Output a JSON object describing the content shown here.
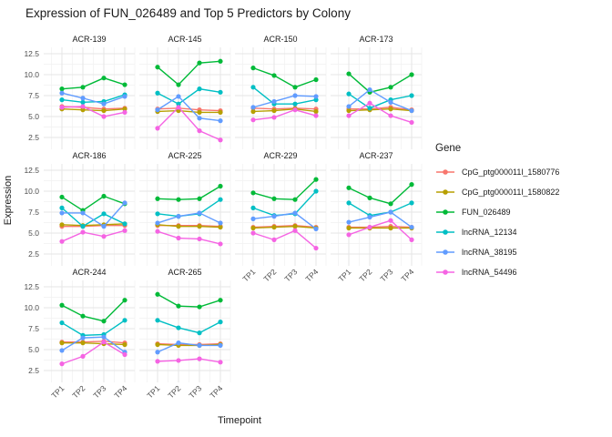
{
  "title": "Expression of FUN_026489 and Top 5 Predictors by Colony",
  "axes": {
    "x_label": "Timepoint",
    "y_label": "Expression",
    "x_ticks": [
      "TP1",
      "TP2",
      "TP3",
      "TP4"
    ],
    "y_ticks": [
      "2.5",
      "5.0",
      "7.5",
      "10.0",
      "12.5"
    ],
    "y_tick_values": [
      2.5,
      5.0,
      7.5,
      10.0,
      12.5
    ],
    "ylim": [
      1.8,
      13.2
    ],
    "grid": "on"
  },
  "legend": {
    "title": "Gene",
    "position": "right",
    "entries": [
      {
        "label": "CpG_ptg000011l_1580776",
        "color": "#F8766D"
      },
      {
        "label": "CpG_ptg000011l_1580822",
        "color": "#B79F00"
      },
      {
        "label": "FUN_026489",
        "color": "#00BA38"
      },
      {
        "label": "lncRNA_12134",
        "color": "#00BFC4"
      },
      {
        "label": "lncRNA_38195",
        "color": "#619CFF"
      },
      {
        "label": "lncRNA_54496",
        "color": "#F564E3"
      }
    ]
  },
  "chart_data": {
    "type": "line",
    "x": [
      "TP1",
      "TP2",
      "TP3",
      "TP4"
    ],
    "series_names": [
      "CpG_ptg000011l_1580776",
      "CpG_ptg000011l_1580822",
      "FUN_026489",
      "lncRNA_12134",
      "lncRNA_38195",
      "lncRNA_54496"
    ],
    "series_colors": [
      "#F8766D",
      "#B79F00",
      "#00BA38",
      "#00BFC4",
      "#619CFF",
      "#F564E3"
    ],
    "facets": [
      {
        "colony": "ACR-139",
        "series": [
          {
            "name": "CpG_ptg000011l_1580776",
            "values": [
              6.2,
              6.1,
              5.9,
              6.0
            ]
          },
          {
            "name": "CpG_ptg000011l_1580822",
            "values": [
              5.9,
              5.8,
              5.7,
              5.9
            ]
          },
          {
            "name": "FUN_026489",
            "values": [
              8.3,
              8.5,
              9.6,
              8.8
            ]
          },
          {
            "name": "lncRNA_12134",
            "values": [
              7.0,
              6.7,
              6.8,
              7.6
            ]
          },
          {
            "name": "lncRNA_38195",
            "values": [
              7.8,
              7.2,
              6.5,
              7.4
            ]
          },
          {
            "name": "lncRNA_54496",
            "values": [
              6.1,
              6.2,
              5.0,
              5.5
            ]
          }
        ]
      },
      {
        "colony": "ACR-145",
        "series": [
          {
            "name": "CpG_ptg000011l_1580776",
            "values": [
              5.9,
              6.0,
              5.8,
              5.7
            ]
          },
          {
            "name": "CpG_ptg000011l_1580822",
            "values": [
              5.6,
              5.7,
              5.5,
              5.5
            ]
          },
          {
            "name": "FUN_026489",
            "values": [
              10.9,
              8.8,
              11.4,
              11.6
            ]
          },
          {
            "name": "lncRNA_12134",
            "values": [
              7.8,
              6.5,
              8.3,
              7.9
            ]
          },
          {
            "name": "lncRNA_38195",
            "values": [
              5.8,
              7.4,
              4.8,
              4.5
            ]
          },
          {
            "name": "lncRNA_54496",
            "values": [
              3.6,
              6.1,
              3.3,
              2.2
            ]
          }
        ]
      },
      {
        "colony": "ACR-150",
        "series": [
          {
            "name": "CpG_ptg000011l_1580776",
            "values": [
              6.0,
              5.9,
              6.0,
              5.9
            ]
          },
          {
            "name": "CpG_ptg000011l_1580822",
            "values": [
              5.6,
              5.7,
              5.9,
              5.6
            ]
          },
          {
            "name": "FUN_026489",
            "values": [
              10.8,
              9.9,
              8.5,
              9.4
            ]
          },
          {
            "name": "lncRNA_12134",
            "values": [
              8.5,
              6.5,
              6.5,
              7.0
            ]
          },
          {
            "name": "lncRNA_38195",
            "values": [
              6.1,
              6.8,
              7.5,
              7.4
            ]
          },
          {
            "name": "lncRNA_54496",
            "values": [
              4.6,
              4.9,
              5.8,
              5.1
            ]
          }
        ]
      },
      {
        "colony": "ACR-173",
        "series": [
          {
            "name": "CpG_ptg000011l_1580776",
            "values": [
              5.9,
              5.9,
              6.1,
              5.8
            ]
          },
          {
            "name": "CpG_ptg000011l_1580822",
            "values": [
              5.7,
              5.8,
              5.9,
              5.7
            ]
          },
          {
            "name": "FUN_026489",
            "values": [
              10.1,
              7.9,
              8.5,
              10.0
            ]
          },
          {
            "name": "lncRNA_12134",
            "values": [
              7.7,
              6.0,
              7.0,
              7.5
            ]
          },
          {
            "name": "lncRNA_38195",
            "values": [
              6.2,
              8.2,
              6.7,
              5.7
            ]
          },
          {
            "name": "lncRNA_54496",
            "values": [
              5.1,
              6.6,
              5.1,
              4.3
            ]
          }
        ]
      },
      {
        "colony": "ACR-186",
        "series": [
          {
            "name": "CpG_ptg000011l_1580776",
            "values": [
              5.8,
              5.8,
              5.9,
              5.9
            ]
          },
          {
            "name": "CpG_ptg000011l_1580822",
            "values": [
              6.0,
              5.9,
              6.0,
              6.1
            ]
          },
          {
            "name": "FUN_026489",
            "values": [
              9.3,
              7.7,
              9.4,
              8.5
            ]
          },
          {
            "name": "lncRNA_12134",
            "values": [
              8.0,
              5.8,
              7.3,
              6.1
            ]
          },
          {
            "name": "lncRNA_38195",
            "values": [
              7.4,
              7.4,
              5.8,
              8.6
            ]
          },
          {
            "name": "lncRNA_54496",
            "values": [
              4.0,
              5.1,
              4.6,
              5.3
            ]
          }
        ]
      },
      {
        "colony": "ACR-225",
        "series": [
          {
            "name": "CpG_ptg000011l_1580776",
            "values": [
              5.9,
              5.9,
              5.9,
              5.8
            ]
          },
          {
            "name": "CpG_ptg000011l_1580822",
            "values": [
              6.0,
              5.8,
              5.8,
              5.7
            ]
          },
          {
            "name": "FUN_026489",
            "values": [
              9.1,
              9.0,
              9.1,
              10.6
            ]
          },
          {
            "name": "lncRNA_12134",
            "values": [
              7.3,
              7.0,
              7.3,
              9.0
            ]
          },
          {
            "name": "lncRNA_38195",
            "values": [
              6.2,
              7.0,
              7.4,
              6.2
            ]
          },
          {
            "name": "lncRNA_54496",
            "values": [
              5.2,
              4.4,
              4.3,
              3.7
            ]
          }
        ]
      },
      {
        "colony": "ACR-229",
        "series": [
          {
            "name": "CpG_ptg000011l_1580776",
            "values": [
              5.7,
              5.8,
              5.9,
              5.7
            ]
          },
          {
            "name": "CpG_ptg000011l_1580822",
            "values": [
              5.6,
              5.7,
              5.8,
              5.6
            ]
          },
          {
            "name": "FUN_026489",
            "values": [
              9.8,
              9.1,
              9.0,
              11.4
            ]
          },
          {
            "name": "lncRNA_12134",
            "values": [
              8.0,
              7.1,
              7.3,
              10.0
            ]
          },
          {
            "name": "lncRNA_38195",
            "values": [
              6.7,
              7.0,
              7.4,
              5.5
            ]
          },
          {
            "name": "lncRNA_54496",
            "values": [
              5.0,
              4.2,
              5.3,
              3.2
            ]
          }
        ]
      },
      {
        "colony": "ACR-237",
        "series": [
          {
            "name": "CpG_ptg000011l_1580776",
            "values": [
              5.7,
              5.7,
              5.8,
              5.7
            ]
          },
          {
            "name": "CpG_ptg000011l_1580822",
            "values": [
              5.6,
              5.6,
              5.6,
              5.6
            ]
          },
          {
            "name": "FUN_026489",
            "values": [
              10.4,
              9.2,
              8.5,
              10.8
            ]
          },
          {
            "name": "lncRNA_12134",
            "values": [
              8.6,
              7.1,
              7.5,
              8.6
            ]
          },
          {
            "name": "lncRNA_38195",
            "values": [
              6.3,
              6.9,
              7.5,
              5.7
            ]
          },
          {
            "name": "lncRNA_54496",
            "values": [
              4.8,
              5.7,
              6.5,
              4.2
            ]
          }
        ]
      },
      {
        "colony": "ACR-244",
        "series": [
          {
            "name": "CpG_ptg000011l_1580776",
            "values": [
              5.9,
              5.9,
              6.0,
              5.8
            ]
          },
          {
            "name": "CpG_ptg000011l_1580822",
            "values": [
              5.8,
              5.8,
              5.7,
              5.6
            ]
          },
          {
            "name": "FUN_026489",
            "values": [
              10.3,
              9.0,
              8.4,
              10.9
            ]
          },
          {
            "name": "lncRNA_12134",
            "values": [
              8.2,
              6.7,
              6.8,
              8.5
            ]
          },
          {
            "name": "lncRNA_38195",
            "values": [
              4.9,
              6.4,
              6.5,
              4.7
            ]
          },
          {
            "name": "lncRNA_54496",
            "values": [
              3.3,
              4.2,
              5.9,
              4.4
            ]
          }
        ]
      },
      {
        "colony": "ACR-265",
        "series": [
          {
            "name": "CpG_ptg000011l_1580776",
            "values": [
              5.7,
              5.6,
              5.6,
              5.7
            ]
          },
          {
            "name": "CpG_ptg000011l_1580822",
            "values": [
              5.6,
              5.5,
              5.5,
              5.6
            ]
          },
          {
            "name": "FUN_026489",
            "values": [
              11.6,
              10.2,
              10.1,
              10.9
            ]
          },
          {
            "name": "lncRNA_12134",
            "values": [
              8.5,
              7.6,
              7.0,
              8.3
            ]
          },
          {
            "name": "lncRNA_38195",
            "values": [
              4.7,
              5.8,
              5.5,
              5.5
            ]
          },
          {
            "name": "lncRNA_54496",
            "values": [
              3.6,
              3.7,
              3.9,
              3.5
            ]
          }
        ]
      }
    ]
  }
}
